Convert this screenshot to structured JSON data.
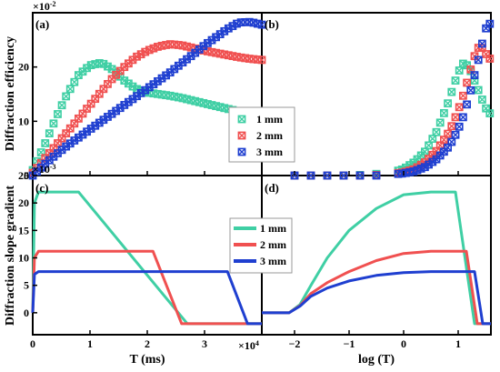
{
  "figure": {
    "ylabel_top": "Diffraction efficiency",
    "ylabel_bottom": "Diffraction slope gradient",
    "xlabel_left": "T (ms)",
    "xlabel_right": "log (T)",
    "top_multiplier": "×10",
    "top_multiplier_exp": "-2",
    "bottom_multiplier": "×10",
    "bottom_multiplier_exp": "-3",
    "x_multiplier": "×10",
    "x_multiplier_exp": "4"
  },
  "legend_top": [
    "1 mm",
    "2 mm",
    "3 mm"
  ],
  "legend_bottom": [
    "1 mm",
    "2 mm",
    "3 mm"
  ],
  "colors": {
    "1 mm": "#3fcfa4",
    "2 mm": "#f05050",
    "3 mm": "#1f3fd0"
  },
  "chart_data": [
    {
      "panel": "(a)",
      "type": "scatter",
      "xlabel": "T (ms)",
      "ylabel": "Diffraction efficiency",
      "xlim": [
        0,
        4
      ],
      "ylim": [
        0,
        30
      ],
      "xticks": [
        "0",
        "1",
        "2",
        "3",
        "4"
      ],
      "yticks": [
        "0",
        "10",
        "20"
      ],
      "y_scale_note": "×10^-2",
      "x_scale_note": "×10^4",
      "series": [
        {
          "name": "1 mm",
          "marker": "x-square",
          "x": [
            0,
            0.2,
            0.4,
            0.6,
            0.8,
            1.0,
            1.2,
            1.4,
            1.6,
            1.8,
            2.0,
            2.2,
            2.4,
            2.6,
            2.8,
            3.0,
            3.2,
            3.4,
            3.6,
            3.8,
            4.0
          ],
          "y": [
            1,
            5.5,
            10.5,
            15,
            18.5,
            20.3,
            20.8,
            19.5,
            17.5,
            16,
            15.3,
            15,
            14.7,
            14.3,
            13.8,
            13.3,
            12.8,
            12.3,
            11.8,
            11.4,
            11.2
          ]
        },
        {
          "name": "2 mm",
          "marker": "x-square",
          "x": [
            0,
            0.2,
            0.4,
            0.6,
            0.8,
            1.0,
            1.2,
            1.4,
            1.6,
            1.8,
            2.0,
            2.2,
            2.4,
            2.6,
            2.8,
            3.0,
            3.2,
            3.4,
            3.6,
            3.8,
            4.0
          ],
          "y": [
            0.5,
            3,
            5.5,
            8,
            10.5,
            13,
            15.5,
            18,
            20,
            21.8,
            23,
            23.8,
            24.2,
            24,
            23.5,
            23,
            22.6,
            22.2,
            21.8,
            21.5,
            21.3
          ]
        },
        {
          "name": "3 mm",
          "marker": "x-square",
          "x": [
            0,
            0.2,
            0.4,
            0.6,
            0.8,
            1.0,
            1.2,
            1.4,
            1.6,
            1.8,
            2.0,
            2.2,
            2.4,
            2.6,
            2.8,
            3.0,
            3.2,
            3.4,
            3.6,
            3.8,
            4.0
          ],
          "y": [
            0,
            2,
            3.8,
            5.5,
            7,
            8.5,
            10,
            11.5,
            13,
            14.5,
            16,
            17.5,
            19,
            20.7,
            22.3,
            24,
            25.5,
            27,
            28.2,
            28.3,
            27.8
          ]
        }
      ]
    },
    {
      "panel": "(b)",
      "type": "scatter",
      "xlabel": "log (T)",
      "xlim": [
        -2.6,
        1.6
      ],
      "ylim": [
        0,
        30
      ],
      "series": [
        {
          "name": "1 mm",
          "x": [
            -2,
            -1.7,
            -1.4,
            -1.1,
            -0.8,
            -0.5,
            -0.2,
            0,
            0.2,
            0.4,
            0.6,
            0.8,
            0.9,
            1.0,
            1.1,
            1.2,
            1.3,
            1.4,
            1.5,
            1.6
          ],
          "y": [
            0,
            0,
            0,
            0,
            0.1,
            0.3,
            0.6,
            1.2,
            2.5,
            4.5,
            8,
            13,
            16,
            19,
            20.8,
            20,
            17.5,
            15,
            12.5,
            11.2
          ]
        },
        {
          "name": "2 mm",
          "x": [
            -2,
            -1.7,
            -1.4,
            -1.1,
            -0.8,
            -0.5,
            -0.2,
            0,
            0.2,
            0.4,
            0.6,
            0.8,
            0.9,
            1.0,
            1.1,
            1.2,
            1.3,
            1.4,
            1.5,
            1.6
          ],
          "y": [
            0,
            0,
            0,
            0,
            0,
            0.1,
            0.3,
            0.6,
            1.2,
            2.5,
            4.5,
            7.5,
            9.5,
            12,
            15,
            18.5,
            22,
            24.2,
            22.5,
            21.3
          ]
        },
        {
          "name": "3 mm",
          "x": [
            -2,
            -1.7,
            -1.4,
            -1.1,
            -0.8,
            -0.5,
            -0.2,
            0,
            0.2,
            0.4,
            0.6,
            0.8,
            0.9,
            1.0,
            1.1,
            1.2,
            1.3,
            1.4,
            1.5,
            1.6
          ],
          "y": [
            0,
            0,
            0,
            0,
            0,
            0,
            0.2,
            0.4,
            0.8,
            1.6,
            3,
            5,
            6.5,
            8.5,
            11,
            14.5,
            18.5,
            22.5,
            27,
            28.2
          ]
        }
      ]
    },
    {
      "panel": "(c)",
      "type": "line",
      "xlabel": "T (ms)",
      "ylabel": "Diffraction slope gradient",
      "xlim": [
        0,
        4
      ],
      "ylim": [
        -4,
        25
      ],
      "xticks": [
        "0",
        "1",
        "2",
        "3",
        "4"
      ],
      "yticks": [
        "0",
        "5",
        "10",
        "15",
        "20",
        "25"
      ],
      "y_scale_note": "×10^-3",
      "series": [
        {
          "name": "1 mm",
          "x": [
            0,
            0.03,
            0.1,
            0.8,
            2.7,
            3.8,
            4.0
          ],
          "y": [
            0,
            20,
            22,
            22,
            -2,
            -2,
            -2
          ]
        },
        {
          "name": "2 mm",
          "x": [
            0,
            0.03,
            0.1,
            2.1,
            2.6,
            3.8,
            4.0
          ],
          "y": [
            0,
            10,
            11.2,
            11.2,
            -2,
            -2,
            -2
          ]
        },
        {
          "name": "3 mm",
          "x": [
            0,
            0.03,
            0.1,
            3.4,
            3.75,
            4.0
          ],
          "y": [
            0,
            7,
            7.5,
            7.5,
            -2,
            -2
          ]
        }
      ]
    },
    {
      "panel": "(d)",
      "type": "line",
      "xlabel": "log (T)",
      "xlim": [
        -2.6,
        1.6
      ],
      "ylim": [
        -4,
        25
      ],
      "xticks": [
        "-2",
        "-1",
        "0",
        "1"
      ],
      "series": [
        {
          "name": "1 mm",
          "x": [
            -2.6,
            -2.1,
            -1.9,
            -1.7,
            -1.4,
            -1.0,
            -0.5,
            0,
            0.5,
            0.95,
            1.3,
            1.45,
            1.6
          ],
          "y": [
            0,
            0,
            1.5,
            5,
            10,
            15,
            19,
            21.5,
            22,
            22,
            -2,
            -2,
            -2
          ]
        },
        {
          "name": "2 mm",
          "x": [
            -2.6,
            -2.1,
            -1.9,
            -1.7,
            -1.4,
            -1.0,
            -0.5,
            0,
            0.5,
            1.15,
            1.35,
            1.5,
            1.6
          ],
          "y": [
            0,
            0,
            1.3,
            3.5,
            5.5,
            7.5,
            9.5,
            10.8,
            11.2,
            11.2,
            -2,
            -2,
            -2
          ]
        },
        {
          "name": "3 mm",
          "x": [
            -2.6,
            -2.1,
            -1.9,
            -1.7,
            -1.4,
            -1.0,
            -0.5,
            0,
            0.5,
            1.3,
            1.45,
            1.55,
            1.6
          ],
          "y": [
            0,
            0,
            1.2,
            3,
            4.5,
            5.8,
            6.8,
            7.3,
            7.5,
            7.5,
            -2,
            -2,
            -2
          ]
        }
      ]
    }
  ]
}
